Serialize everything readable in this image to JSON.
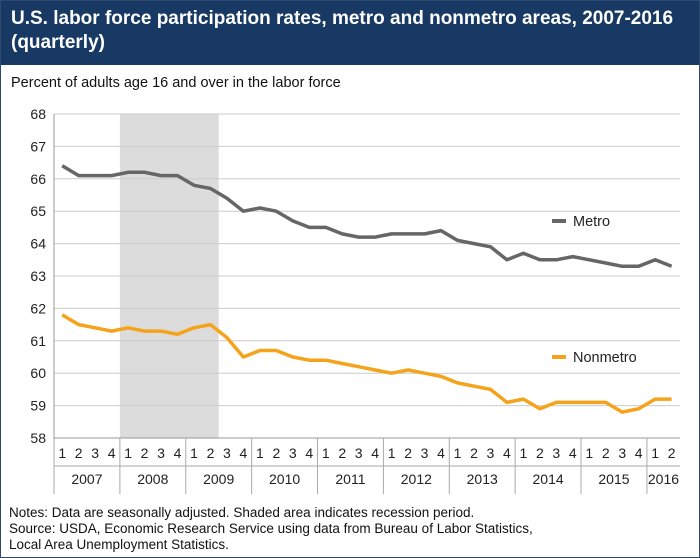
{
  "title": "U.S. labor force participation rates, metro and nonmetro areas, 2007-2016 (quarterly)",
  "subtitle": "Percent of adults age 16 and over in the labor force",
  "notes": [
    "Notes: Data are seasonally adjusted. Shaded area indicates recession period.",
    "Source: USDA, Economic Research Service using data from Bureau of Labor Statistics,",
    "Local Area Unemployment Statistics."
  ],
  "colors": {
    "header": "#173963",
    "metro": "#666666",
    "nonmetro": "#f5a31a",
    "recession": "#dcdcdc",
    "grid": "#cccccc"
  },
  "chart_data": {
    "type": "line",
    "title": "U.S. labor force participation rates, metro and nonmetro areas, 2007-2016 (quarterly)",
    "ylabel": "Percent of adults age 16 and over in the labor force",
    "ylim": [
      58,
      68
    ],
    "yticks": [
      "58",
      "59",
      "60",
      "61",
      "62",
      "63",
      "64",
      "65",
      "66",
      "67",
      "68"
    ],
    "grid": true,
    "quarter_labels": [
      "1",
      "2",
      "3",
      "4"
    ],
    "years": [
      "2007",
      "2008",
      "2009",
      "2010",
      "2011",
      "2012",
      "2013",
      "2014",
      "2015",
      "2016"
    ],
    "final_year_quarters": 2,
    "recession": {
      "start": "2008 Q1",
      "end": "2009 Q2"
    },
    "series": [
      {
        "name": "Metro",
        "values": [
          66.4,
          66.1,
          66.1,
          66.1,
          66.2,
          66.2,
          66.1,
          66.1,
          65.8,
          65.7,
          65.4,
          65.0,
          65.1,
          65.0,
          64.7,
          64.5,
          64.5,
          64.3,
          64.2,
          64.2,
          64.3,
          64.3,
          64.3,
          64.4,
          64.1,
          64.0,
          63.9,
          63.5,
          63.7,
          63.5,
          63.5,
          63.6,
          63.5,
          63.4,
          63.3,
          63.3,
          63.5,
          63.3
        ]
      },
      {
        "name": "Nonmetro",
        "values": [
          61.8,
          61.5,
          61.4,
          61.3,
          61.4,
          61.3,
          61.3,
          61.2,
          61.4,
          61.5,
          61.1,
          60.5,
          60.7,
          60.7,
          60.5,
          60.4,
          60.4,
          60.3,
          60.2,
          60.1,
          60.0,
          60.1,
          60.0,
          59.9,
          59.7,
          59.6,
          59.5,
          59.1,
          59.2,
          58.9,
          59.1,
          59.1,
          59.1,
          59.1,
          58.8,
          58.9,
          59.2,
          59.2
        ]
      }
    ]
  }
}
